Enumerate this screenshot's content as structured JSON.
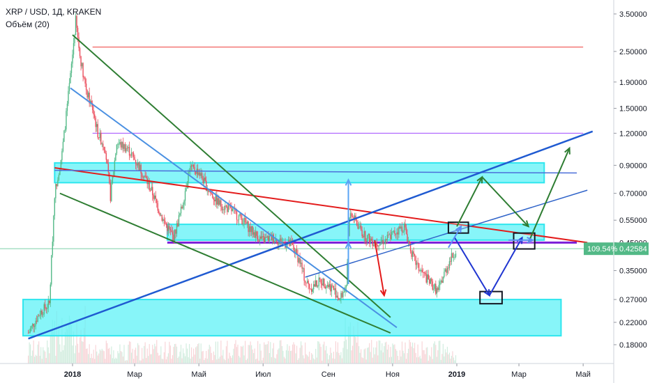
{
  "legend": {
    "symbol_line": "XRP / USD, 1Д, KRAKEN",
    "volume_line": "Объём (20)"
  },
  "chart_data": {
    "type": "candlestick",
    "symbol": "XRP / USD",
    "interval": "1Д",
    "exchange": "KRAKEN",
    "y_scale": "log",
    "y_ticks": [
      "3.50000",
      "2.50000",
      "1.90000",
      "1.50000",
      "1.20000",
      "0.90000",
      "0.70000",
      "0.55000",
      "0.45000",
      "0.35000",
      "0.27000",
      "0.22000",
      "0.18000"
    ],
    "x_ticks": [
      {
        "label": "2018",
        "bold": true
      },
      {
        "label": "Мар",
        "bold": false
      },
      {
        "label": "Май",
        "bold": false
      },
      {
        "label": "Июл",
        "bold": false
      },
      {
        "label": "Сен",
        "bold": false
      },
      {
        "label": "Ноя",
        "bold": false
      },
      {
        "label": "2019",
        "bold": true
      },
      {
        "label": "Мар",
        "bold": false
      },
      {
        "label": "Май",
        "bold": false
      }
    ],
    "price_path": [
      [
        "2017-11-20",
        0.2
      ],
      [
        "2017-12-01",
        0.24
      ],
      [
        "2017-12-10",
        0.26
      ],
      [
        "2017-12-15",
        0.7
      ],
      [
        "2017-12-22",
        1.0
      ],
      [
        "2017-12-30",
        2.0
      ],
      [
        "2018-01-04",
        3.3
      ],
      [
        "2018-01-08",
        2.4
      ],
      [
        "2018-01-15",
        1.7
      ],
      [
        "2018-01-20",
        1.5
      ],
      [
        "2018-01-25",
        1.2
      ],
      [
        "2018-02-01",
        1.05
      ],
      [
        "2018-02-06",
        0.68
      ],
      [
        "2018-02-12",
        1.1
      ],
      [
        "2018-02-22",
        1.05
      ],
      [
        "2018-03-01",
        0.95
      ],
      [
        "2018-03-10",
        0.82
      ],
      [
        "2018-03-18",
        0.7
      ],
      [
        "2018-03-28",
        0.55
      ],
      [
        "2018-04-07",
        0.47
      ],
      [
        "2018-04-15",
        0.62
      ],
      [
        "2018-04-22",
        0.88
      ],
      [
        "2018-05-01",
        0.85
      ],
      [
        "2018-05-10",
        0.72
      ],
      [
        "2018-05-20",
        0.64
      ],
      [
        "2018-06-01",
        0.6
      ],
      [
        "2018-06-10",
        0.56
      ],
      [
        "2018-06-20",
        0.5
      ],
      [
        "2018-06-30",
        0.46
      ],
      [
        "2018-07-10",
        0.47
      ],
      [
        "2018-07-20",
        0.45
      ],
      [
        "2018-07-28",
        0.44
      ],
      [
        "2018-08-05",
        0.38
      ],
      [
        "2018-08-10",
        0.32
      ],
      [
        "2018-08-15",
        0.3
      ],
      [
        "2018-08-25",
        0.32
      ],
      [
        "2018-09-05",
        0.3
      ],
      [
        "2018-09-12",
        0.27
      ],
      [
        "2018-09-18",
        0.31
      ],
      [
        "2018-09-21",
        0.58
      ],
      [
        "2018-09-25",
        0.56
      ],
      [
        "2018-10-05",
        0.48
      ],
      [
        "2018-10-15",
        0.45
      ],
      [
        "2018-10-25",
        0.46
      ],
      [
        "2018-11-05",
        0.5
      ],
      [
        "2018-11-12",
        0.52
      ],
      [
        "2018-11-20",
        0.4
      ],
      [
        "2018-11-25",
        0.36
      ],
      [
        "2018-12-05",
        0.32
      ],
      [
        "2018-12-14",
        0.29
      ],
      [
        "2018-12-20",
        0.34
      ],
      [
        "2018-12-25",
        0.38
      ],
      [
        "2018-12-31",
        0.42
      ]
    ],
    "horizontal_lines": [
      {
        "price": 2.6,
        "from": "2018-01-20",
        "to": "2019-05-01",
        "color": "#f05350"
      },
      {
        "price": 1.2,
        "from": "2018-01-20",
        "to": "2019-05-01",
        "color": "#b26bff"
      },
      {
        "price": 0.45,
        "from": "2018-04-01",
        "to": "2019-04-25",
        "color": "#7b1fd8"
      }
    ],
    "zones": [
      {
        "from": "2017-12-15",
        "to": "2019-03-25",
        "price_top": 0.92,
        "price_bottom": 0.77
      },
      {
        "from": "2018-04-01",
        "to": "2019-03-25",
        "price_top": 0.53,
        "price_bottom": 0.46
      },
      {
        "from": "2017-11-15",
        "to": "2019-04-10",
        "price_top": 0.27,
        "price_bottom": 0.195
      }
    ],
    "trend_lines": [
      {
        "p1": [
          "2017-12-15",
          0.88
        ],
        "p2": [
          "2019-05-05",
          0.45
        ],
        "color": "#e31b1b",
        "width": 2
      },
      {
        "p1": [
          "2017-12-15",
          0.86
        ],
        "p2": [
          "2019-04-25",
          0.84
        ],
        "color": "#4c6fd9",
        "width": 1.5
      },
      {
        "p1": [
          "2017-11-20",
          0.19
        ],
        "p2": [
          "2019-05-10",
          1.22
        ],
        "color": "#1f5ad1",
        "width": 2.5
      },
      {
        "p1": [
          "2018-08-10",
          0.33
        ],
        "p2": [
          "2019-05-05",
          0.72
        ],
        "color": "#2f63c9",
        "width": 1.5
      },
      {
        "p1": [
          "2018-01-01",
          2.9
        ],
        "p2": [
          "2018-10-30",
          0.23
        ],
        "color": "#2e7d32",
        "width": 2
      },
      {
        "p1": [
          "2017-12-20",
          0.7
        ],
        "p2": [
          "2018-10-30",
          0.2
        ],
        "color": "#2e7d32",
        "width": 2
      },
      {
        "p1": [
          "2017-12-30",
          1.8
        ],
        "p2": [
          "2018-11-05",
          0.21
        ],
        "color": "#4a90e2",
        "width": 2
      }
    ],
    "arrows": [
      {
        "from": [
          "2018-09-20",
          0.34
        ],
        "to": [
          "2018-09-20",
          0.79
        ],
        "color": "#5aa4f5"
      },
      {
        "from": [
          "2018-09-20",
          0.31
        ],
        "to": [
          "2018-09-20",
          0.45
        ],
        "color": "#5aa4f5"
      },
      {
        "from": [
          "2018-10-15",
          0.46
        ],
        "to": [
          "2018-10-24",
          0.28
        ],
        "color": "#e31b1b"
      },
      {
        "from": [
          "2019-01-01",
          0.52
        ],
        "to": [
          "2019-01-25",
          0.81
        ],
        "color": "#2e7d32"
      },
      {
        "from": [
          "2019-01-25",
          0.81
        ],
        "to": [
          "2019-03-10",
          0.52
        ],
        "color": "#2e7d32"
      },
      {
        "from": [
          "2019-03-10",
          0.45
        ],
        "to": [
          "2019-04-18",
          1.05
        ],
        "color": "#2e7d32"
      },
      {
        "from": [
          "2018-12-30",
          0.47
        ],
        "to": [
          "2019-02-01",
          0.28
        ],
        "color": "#1f35d1"
      },
      {
        "from": [
          "2019-02-01",
          0.28
        ],
        "to": [
          "2019-03-04",
          0.47
        ],
        "color": "#1f35d1"
      },
      {
        "from": [
          "2018-12-24",
          0.43
        ],
        "to": [
          "2019-01-05",
          0.52
        ],
        "color": "#5b8cf7"
      },
      {
        "from": [
          "2019-02-19",
          0.46
        ],
        "to": [
          "2019-03-14",
          0.46
        ],
        "color": "#5b8cf7"
      }
    ],
    "boxes": [
      {
        "from": "2018-12-24",
        "to": "2019-01-12",
        "price_top": 0.54,
        "price_bottom": 0.49
      },
      {
        "from": "2019-01-23",
        "to": "2019-02-13",
        "price_top": 0.29,
        "price_bottom": 0.26
      },
      {
        "from": "2019-02-24",
        "to": "2019-03-16",
        "price_top": 0.49,
        "price_bottom": 0.425
      }
    ],
    "current_price_line": 0.42584,
    "price_tag": {
      "change": "109.54%",
      "value": "0.42584",
      "color": "#53b987"
    }
  }
}
